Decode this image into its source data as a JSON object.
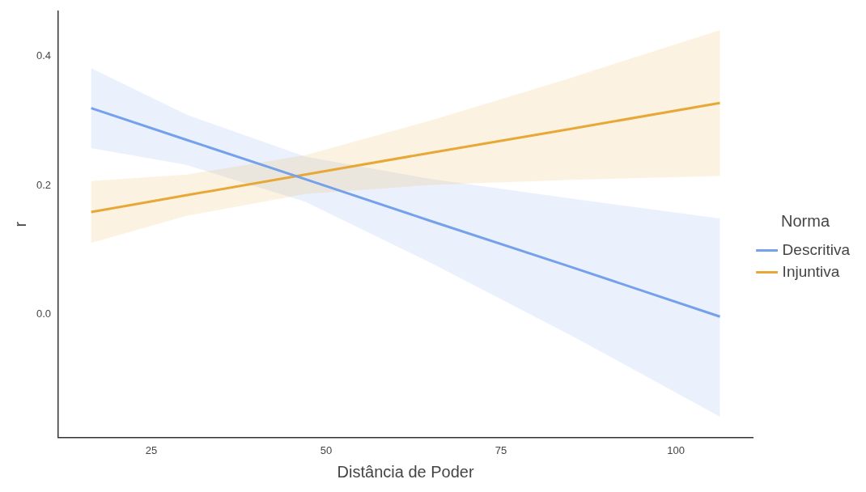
{
  "chart_data": {
    "type": "line",
    "xlabel": "Distância de Poder",
    "ylabel": "r",
    "legend_title": "Norma",
    "legend": "right",
    "grid": false,
    "marker": "none",
    "line_style": "solid",
    "xlim": [
      11.7,
      111
    ],
    "xticks": [
      25,
      50,
      75,
      100
    ],
    "ylim": [
      -0.19,
      0.47
    ],
    "yticks": [
      {
        "value": 0,
        "label": "0.0"
      },
      {
        "value": 0.2,
        "label": "0.2"
      },
      {
        "value": 0.4,
        "label": "0.4"
      }
    ],
    "x": [
      16.4,
      30,
      47,
      65,
      85,
      106.3
    ],
    "series": [
      {
        "name": "Descritiva",
        "color": "#75a0ea",
        "values": [
          0.32,
          0.271,
          0.21,
          0.145,
          0.074,
          -0.003
        ],
        "lower": [
          0.258,
          0.232,
          0.175,
          0.08,
          -0.032,
          -0.158
        ],
        "upper": [
          0.382,
          0.31,
          0.245,
          0.21,
          0.18,
          0.149
        ]
      },
      {
        "name": "Injuntiva",
        "color": "#e8a838",
        "values": [
          0.159,
          0.185,
          0.217,
          0.251,
          0.288,
          0.328
        ],
        "lower": [
          0.111,
          0.153,
          0.187,
          0.201,
          0.209,
          0.215
        ],
        "upper": [
          0.207,
          0.217,
          0.247,
          0.301,
          0.367,
          0.441
        ]
      }
    ]
  }
}
